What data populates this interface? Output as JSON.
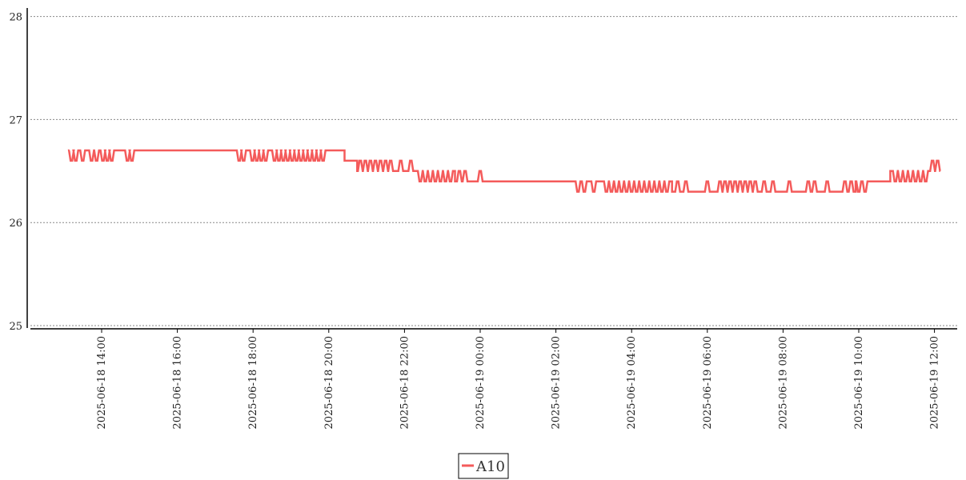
{
  "chart_data": {
    "type": "line",
    "title": "",
    "xlabel": "",
    "ylabel": "",
    "ylim": [
      25,
      28
    ],
    "yticks": [
      25,
      26,
      27,
      28
    ],
    "xlim": [
      "2025-06-18 13:17",
      "2025-06-19 12:17"
    ],
    "xticks": [
      "2025-06-18 14:00",
      "2025-06-18 16:00",
      "2025-06-18 18:00",
      "2025-06-18 20:00",
      "2025-06-18 22:00",
      "2025-06-19 00:00",
      "2025-06-19 02:00",
      "2025-06-19 04:00",
      "2025-06-19 06:00",
      "2025-06-19 08:00",
      "2025-06-19 10:00",
      "2025-06-19 12:00"
    ],
    "grid": "horizontal dotted",
    "legend": "bottom-center",
    "series": [
      {
        "name": "A10",
        "color": "#f45b5b",
        "segments": [
          {
            "start": "2025-06-18 13:09",
            "end": "2025-06-18 20:25",
            "value": 26.7,
            "dips": {
              "value": 26.6,
              "at": [
                "2025-06-18 13:12",
                "2025-06-18 13:19",
                "2025-06-18 13:30",
                "2025-06-18 13:44",
                "2025-06-18 13:52",
                "2025-06-18 14:02",
                "2025-06-18 14:09",
                "2025-06-18 14:16",
                "2025-06-18 14:41",
                "2025-06-18 14:48",
                "2025-06-18 17:38",
                "2025-06-18 17:45",
                "2025-06-18 17:59",
                "2025-06-18 18:06",
                "2025-06-18 18:13",
                "2025-06-18 18:20",
                "2025-06-18 18:34",
                "2025-06-18 18:41",
                "2025-06-18 18:48",
                "2025-06-18 18:55",
                "2025-06-18 19:02",
                "2025-06-18 19:09",
                "2025-06-18 19:16",
                "2025-06-18 19:23",
                "2025-06-18 19:30",
                "2025-06-18 19:37",
                "2025-06-18 19:44",
                "2025-06-18 19:51"
              ]
            }
          },
          {
            "start": "2025-06-18 20:25",
            "end": "2025-06-18 20:45",
            "value": 26.6
          },
          {
            "start": "2025-06-18 20:45",
            "end": "2025-06-18 23:20",
            "value": 26.5,
            "ups": {
              "value": 26.6,
              "at": [
                "2025-06-18 20:50",
                "2025-06-18 20:58",
                "2025-06-18 21:06",
                "2025-06-18 21:14",
                "2025-06-18 21:22",
                "2025-06-18 21:30",
                "2025-06-18 21:38",
                "2025-06-18 21:54",
                "2025-06-18 22:10"
              ]
            },
            "dips": {
              "value": 26.4,
              "at": [
                "2025-06-18 22:25",
                "2025-06-18 22:33",
                "2025-06-18 22:41",
                "2025-06-18 22:49",
                "2025-06-18 22:57",
                "2025-06-18 23:05",
                "2025-06-18 23:13"
              ]
            }
          },
          {
            "start": "2025-06-18 23:20",
            "end": "2025-06-19 05:04",
            "value": 26.4,
            "ups": {
              "value": 26.5,
              "at": [
                "2025-06-18 23:27",
                "2025-06-18 23:36",
                "2025-06-19 00:00"
              ]
            },
            "dips": {
              "value": 26.3,
              "at": [
                "2025-06-19 02:35",
                "2025-06-19 02:45",
                "2025-06-19 03:00",
                "2025-06-19 03:20",
                "2025-06-19 03:28",
                "2025-06-19 03:36",
                "2025-06-19 03:44",
                "2025-06-19 03:52",
                "2025-06-19 04:00",
                "2025-06-19 04:08",
                "2025-06-19 04:16",
                "2025-06-19 04:24",
                "2025-06-19 04:32",
                "2025-06-19 04:40",
                "2025-06-19 04:48",
                "2025-06-19 04:56"
              ]
            }
          },
          {
            "start": "2025-06-19 05:04",
            "end": "2025-06-19 09:55",
            "value": 26.3,
            "ups": {
              "value": 26.4,
              "at": [
                "2025-06-19 05:13",
                "2025-06-19 05:26",
                "2025-06-19 06:00",
                "2025-06-19 06:20",
                "2025-06-19 06:28",
                "2025-06-19 06:36",
                "2025-06-19 06:44",
                "2025-06-19 06:52",
                "2025-06-19 07:00",
                "2025-06-19 07:08",
                "2025-06-19 07:16",
                "2025-06-19 07:30",
                "2025-06-19 07:44",
                "2025-06-19 08:10",
                "2025-06-19 08:40",
                "2025-06-19 08:50",
                "2025-06-19 09:10",
                "2025-06-19 09:38",
                "2025-06-19 09:48"
              ]
            }
          },
          {
            "start": "2025-06-19 09:55",
            "end": "2025-06-19 10:50",
            "value": 26.4,
            "dips": {
              "value": 26.3,
              "at": [
                "2025-06-19 10:00",
                "2025-06-19 10:10"
              ]
            }
          },
          {
            "start": "2025-06-19 10:50",
            "end": "2025-06-19 12:09",
            "value": 26.5,
            "dips": {
              "value": 26.4,
              "at": [
                "2025-06-19 10:58",
                "2025-06-19 11:06",
                "2025-06-19 11:14",
                "2025-06-19 11:22",
                "2025-06-19 11:30",
                "2025-06-19 11:38",
                "2025-06-19 11:46"
              ]
            },
            "ups": {
              "value": 26.6,
              "at": [
                "2025-06-19 11:57",
                "2025-06-19 12:05"
              ]
            }
          }
        ]
      }
    ]
  }
}
